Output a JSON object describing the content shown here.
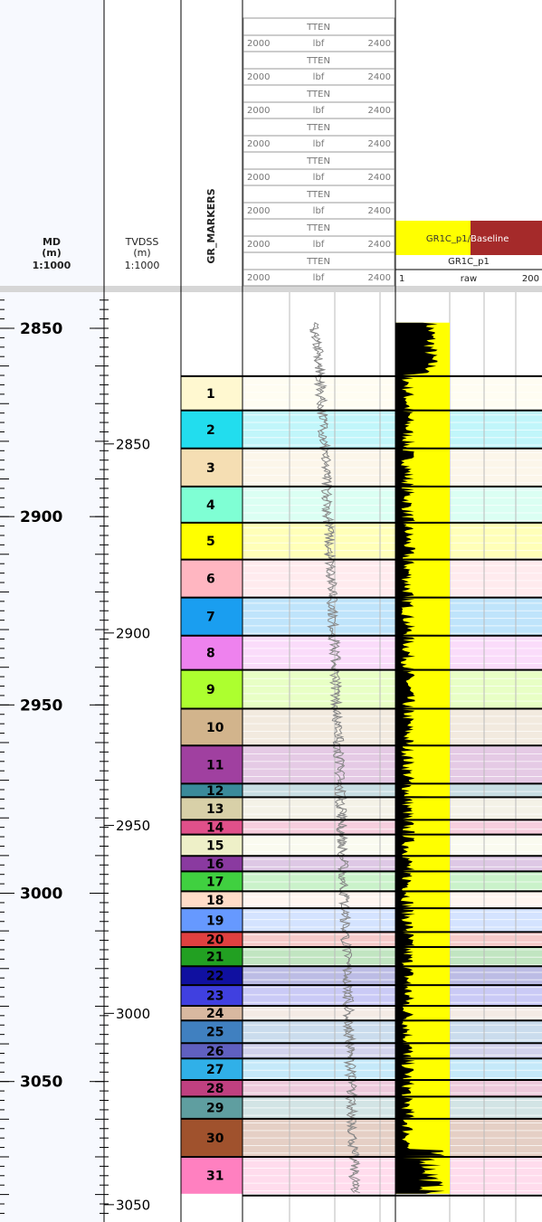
{
  "header": {
    "md": {
      "title": "MD",
      "unit": "(m)",
      "scale": "1:1000"
    },
    "tvdss": {
      "title": "TVDSS",
      "unit": "(m)",
      "scale": "1:1000"
    },
    "markers_title": "GR_MARKERS",
    "tten_scales": [
      {
        "name": "TTEN",
        "min": 2000,
        "unit": "lbf",
        "max": 2400
      },
      {
        "name": "TTEN",
        "min": 2000,
        "unit": "lbf",
        "max": 2400
      },
      {
        "name": "TTEN",
        "min": 2000,
        "unit": "lbf",
        "max": 2400
      },
      {
        "name": "TTEN",
        "min": 2000,
        "unit": "lbf",
        "max": 2400
      },
      {
        "name": "TTEN",
        "min": 2000,
        "unit": "lbf",
        "max": 2400
      },
      {
        "name": "TTEN",
        "min": 2000,
        "unit": "lbf",
        "max": 2400
      },
      {
        "name": "TTEN",
        "min": 2000,
        "unit": "lbf",
        "max": 2400
      },
      {
        "name": "TTEN",
        "min": 2000,
        "unit": "lbf",
        "max": 2400
      }
    ],
    "gr": {
      "fill_left": "GR1C_p1/",
      "fill_right": "Baseline",
      "name": "GR1C_p1",
      "min": 1,
      "unit": "raw",
      "max": 200
    }
  },
  "md_range": [
    2840.4,
    3087.3
  ],
  "md_ticks": [
    2850,
    2900,
    2950,
    3000,
    3050
  ],
  "tvdss_ticks": [
    {
      "tvdss": 2850,
      "md": 2880.7
    },
    {
      "tvdss": 2900,
      "md": 2930.9
    },
    {
      "tvdss": 2950,
      "md": 2982.0
    },
    {
      "tvdss": 3000,
      "md": 3031.9
    },
    {
      "tvdss": 3050,
      "md": 3082.7
    }
  ],
  "markers": [
    {
      "label": "1",
      "top": 2862.7,
      "color": "#fff8d0"
    },
    {
      "label": "2",
      "top": 2871.8,
      "color": "#22ddee"
    },
    {
      "label": "3",
      "top": 2881.9,
      "color": "#f5deb3"
    },
    {
      "label": "4",
      "top": 2892.0,
      "color": "#7fffd4"
    },
    {
      "label": "5",
      "top": 2901.6,
      "color": "#ffff00"
    },
    {
      "label": "6",
      "top": 2911.4,
      "color": "#ffb6c1"
    },
    {
      "label": "7",
      "top": 2921.5,
      "color": "#1a9ef0"
    },
    {
      "label": "8",
      "top": 2931.6,
      "color": "#ee82ee"
    },
    {
      "label": "9",
      "top": 2940.7,
      "color": "#adff2f"
    },
    {
      "label": "10",
      "top": 2951.0,
      "color": "#d2b48c"
    },
    {
      "label": "11",
      "top": 2960.8,
      "color": "#a040a0"
    },
    {
      "label": "12",
      "top": 2970.9,
      "color": "#3a8a9a"
    },
    {
      "label": "13",
      "top": 2974.5,
      "color": "#d8d0a8"
    },
    {
      "label": "14",
      "top": 2980.5,
      "color": "#e0508a"
    },
    {
      "label": "15",
      "top": 2984.4,
      "color": "#eef0c8"
    },
    {
      "label": "16",
      "top": 2990.1,
      "color": "#8a3aa0"
    },
    {
      "label": "17",
      "top": 2994.2,
      "color": "#40d040"
    },
    {
      "label": "18",
      "top": 2999.5,
      "color": "#ffdcc8"
    },
    {
      "label": "19",
      "top": 3004.0,
      "color": "#6699ff"
    },
    {
      "label": "20",
      "top": 3010.3,
      "color": "#e04040"
    },
    {
      "label": "21",
      "top": 3014.3,
      "color": "#22a022"
    },
    {
      "label": "22",
      "top": 3019.4,
      "color": "#1010a0"
    },
    {
      "label": "23",
      "top": 3024.4,
      "color": "#4040e0"
    },
    {
      "label": "24",
      "top": 3029.9,
      "color": "#d8b8a0"
    },
    {
      "label": "25",
      "top": 3033.8,
      "color": "#4080c0"
    },
    {
      "label": "26",
      "top": 3039.8,
      "color": "#6060c0"
    },
    {
      "label": "27",
      "top": 3043.9,
      "color": "#30b0e8"
    },
    {
      "label": "28",
      "top": 3049.6,
      "color": "#c04080"
    },
    {
      "label": "29",
      "top": 3054.0,
      "color": "#5f9ea0"
    },
    {
      "label": "30",
      "top": 3059.9,
      "color": "#a0522d"
    },
    {
      "label": "31",
      "top": 3070.0,
      "color": "#ff80c0"
    }
  ],
  "markers_base": 3079.8
}
